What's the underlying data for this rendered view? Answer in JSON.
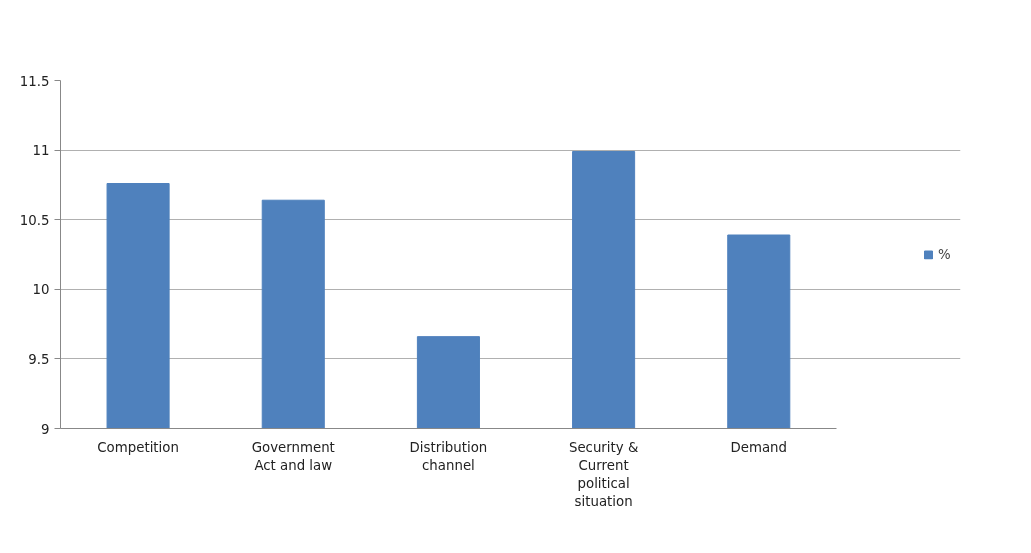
{
  "chart_data": {
    "type": "bar",
    "categories": [
      "Competition",
      "Government Act and law",
      "Distribution channel",
      "Security & Current political situation",
      "Demand"
    ],
    "series": [
      {
        "name": "%",
        "color": "#4f81bd",
        "values": [
          10.76,
          10.64,
          9.66,
          10.99,
          10.39
        ]
      }
    ],
    "ylim": [
      9,
      11.5
    ],
    "yticks": [
      9,
      9.5,
      10,
      10.5,
      11,
      11.5
    ],
    "grid": "y",
    "legend": "right"
  }
}
